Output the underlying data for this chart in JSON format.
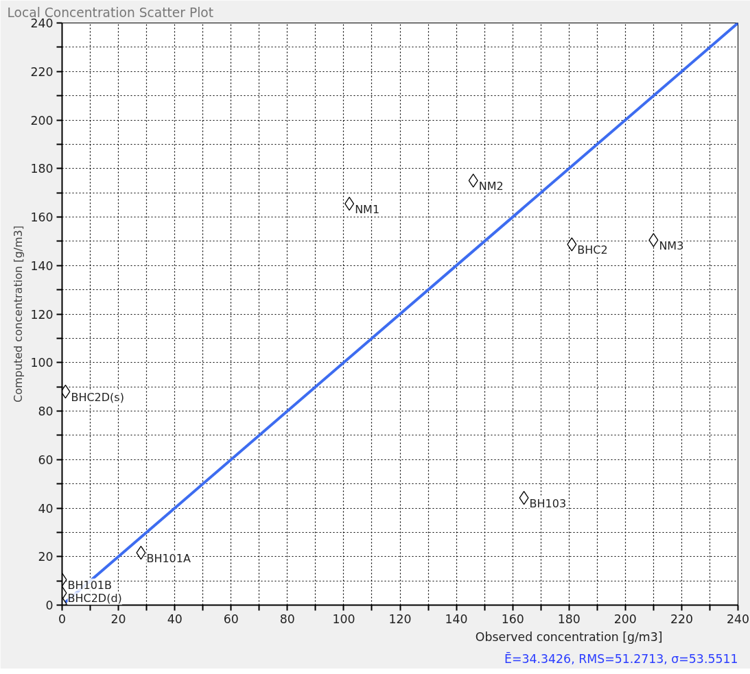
{
  "chart_data": {
    "type": "scatter",
    "title": "Local Concentration Scatter Plot",
    "xlabel": "Observed concentration [g/m3]",
    "ylabel": "Computed concentration [g/m3]",
    "series": [
      {
        "color": "#000000",
        "marker": "diamond",
        "x": [
          102,
          146,
          181,
          210,
          1.2,
          164,
          28,
          0,
          0,
          0
        ],
        "values": [
          165.5,
          175,
          148.7,
          150.5,
          88,
          44.2,
          21.6,
          10.5,
          5,
          0.5
        ]
      },
      {
        "type": "line",
        "color": "#3d6cf0",
        "line_style": "solid",
        "marker": "none",
        "x": [
          0,
          240
        ],
        "values": [
          0,
          240
        ]
      }
    ],
    "annotations": [
      {
        "text": "NM1",
        "x": 102,
        "y": 165.5
      },
      {
        "text": "NM2",
        "x": 146,
        "y": 175
      },
      {
        "text": "BHC2",
        "x": 181,
        "y": 148.7
      },
      {
        "text": "NM3",
        "x": 210,
        "y": 150.5
      },
      {
        "text": "BHC2D(s)",
        "x": 1.2,
        "y": 88
      },
      {
        "text": "BH103",
        "x": 164,
        "y": 44.2
      },
      {
        "text": "BH101A",
        "x": 28,
        "y": 21.6
      },
      {
        "text": "BH101B",
        "x": 0,
        "y": 10.5
      },
      {
        "text": "BHC2D(d)",
        "x": 0,
        "y": 5
      },
      "Ē=34.3426, RMS=51.2713, σ=53.5511"
    ],
    "xlim": [
      0,
      240
    ],
    "ylim": [
      0,
      240
    ],
    "xticks": [
      0,
      {
        "value": 10,
        "label": null
      },
      20,
      {
        "value": 30,
        "label": null
      },
      40,
      {
        "value": 50,
        "label": null
      },
      60,
      {
        "value": 70,
        "label": null
      },
      80,
      {
        "value": 90,
        "label": null
      },
      100,
      {
        "value": 110,
        "label": null
      },
      120,
      {
        "value": 130,
        "label": null
      },
      140,
      {
        "value": 150,
        "label": null
      },
      160,
      {
        "value": 170,
        "label": null
      },
      180,
      {
        "value": 190,
        "label": null
      },
      200,
      {
        "value": 210,
        "label": null
      },
      220,
      {
        "value": 230,
        "label": null
      },
      240
    ],
    "yticks": [
      0,
      {
        "value": 10,
        "label": null
      },
      20,
      {
        "value": 30,
        "label": null
      },
      40,
      {
        "value": 50,
        "label": null
      },
      60,
      {
        "value": 70,
        "label": null
      },
      80,
      {
        "value": 90,
        "label": null
      },
      100,
      {
        "value": 110,
        "label": null
      },
      120,
      {
        "value": 130,
        "label": null
      },
      140,
      {
        "value": 150,
        "label": null
      },
      160,
      {
        "value": 170,
        "label": null
      },
      180,
      {
        "value": 190,
        "label": null
      },
      200,
      {
        "value": 210,
        "label": null
      },
      220,
      {
        "value": 230,
        "label": null
      },
      240
    ],
    "grid": true
  }
}
